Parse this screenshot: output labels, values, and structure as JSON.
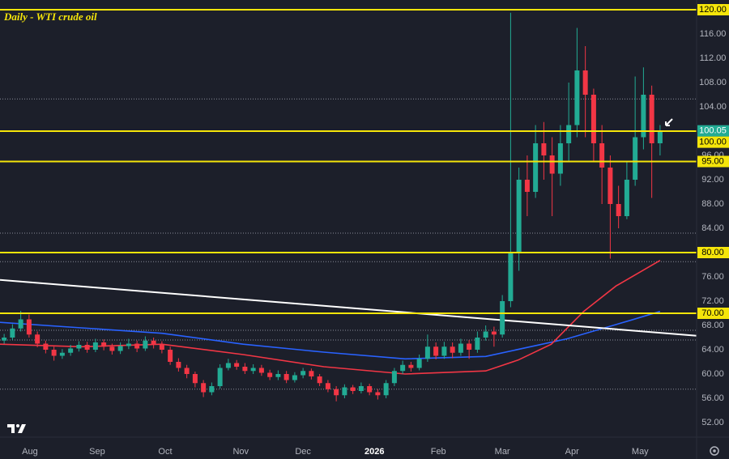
{
  "chart_data": {
    "type": "candlestick",
    "title": "Daily - WTI crude oil",
    "x": [
      0,
      1,
      2,
      3,
      4,
      5,
      6,
      7,
      8,
      9,
      10,
      11,
      12,
      13,
      14,
      15,
      16,
      17,
      18,
      19,
      20,
      21,
      22,
      23,
      24,
      25,
      26,
      27,
      28,
      29,
      30,
      31,
      32,
      33,
      34,
      35,
      36,
      37,
      38,
      39,
      40,
      41,
      42,
      43,
      44,
      45,
      46,
      47,
      48,
      49,
      50,
      51,
      52,
      53,
      54,
      55,
      56,
      57,
      58,
      59,
      60,
      61,
      62,
      63,
      64,
      65,
      66,
      67,
      68,
      69,
      70,
      71,
      72,
      73,
      74,
      75,
      76,
      77,
      78,
      79
    ],
    "open": [
      65.5,
      66.0,
      67.5,
      69.0,
      66.5,
      65.0,
      64.0,
      63.0,
      63.5,
      64.2,
      64.8,
      64.0,
      65.2,
      64.5,
      63.8,
      64.6,
      65.0,
      64.2,
      65.5,
      64.8,
      64.0,
      62.0,
      61.0,
      60.0,
      58.5,
      57.0,
      58.0,
      61.0,
      61.8,
      61.2,
      60.5,
      61.0,
      60.2,
      59.5,
      60.0,
      59.0,
      59.8,
      60.5,
      59.6,
      58.5,
      57.5,
      56.5,
      57.8,
      57.2,
      58.0,
      57.0,
      56.5,
      58.5,
      60.5,
      61.5,
      61.0,
      62.5,
      64.5,
      63.0,
      64.5,
      63.5,
      65.0,
      64.0,
      66.0,
      67.0,
      66.5,
      72.0,
      80.0,
      92.0,
      90.0,
      98.0,
      96.0,
      93.0,
      98.0,
      101.0,
      110.0,
      106.0,
      98.0,
      94.0,
      88.0,
      86.0,
      92.0,
      99.0,
      106.0,
      98.0
    ],
    "high": [
      66.6,
      68.2,
      70.4,
      69.8,
      67.0,
      65.5,
      64.5,
      64.1,
      64.8,
      65.4,
      65.3,
      65.8,
      65.7,
      65.0,
      65.2,
      65.8,
      65.5,
      66.2,
      66.0,
      65.4,
      64.5,
      62.6,
      61.5,
      60.4,
      59.0,
      58.6,
      61.6,
      62.5,
      62.3,
      61.8,
      61.6,
      61.5,
      60.7,
      60.6,
      60.5,
      60.3,
      61.0,
      60.9,
      60.0,
      59.0,
      58.0,
      58.3,
      58.2,
      58.6,
      58.4,
      57.5,
      59.0,
      61.0,
      62.2,
      62.0,
      63.2,
      66.5,
      65.2,
      65.3,
      65.2,
      65.8,
      65.6,
      67.0,
      68.0,
      67.8,
      73.0,
      119.5,
      94.0,
      96.0,
      101.0,
      101.5,
      99.0,
      101.0,
      108.0,
      117.0,
      114.0,
      107.0,
      101.0,
      96.0,
      91.0,
      95.0,
      109.0,
      110.5,
      107.5,
      101.0
    ],
    "low": [
      65.0,
      65.6,
      67.0,
      66.0,
      64.4,
      63.4,
      62.2,
      62.5,
      63.0,
      63.7,
      63.5,
      63.6,
      63.9,
      63.2,
      63.3,
      64.1,
      63.6,
      63.8,
      64.2,
      63.4,
      61.5,
      60.4,
      59.3,
      57.8,
      56.2,
      56.5,
      57.6,
      60.6,
      60.7,
      60.0,
      60.0,
      59.7,
      59.0,
      59.0,
      58.5,
      58.6,
      59.3,
      59.1,
      58.0,
      57.0,
      55.5,
      56.0,
      56.7,
      56.8,
      56.5,
      55.8,
      56.0,
      58.0,
      60.0,
      60.4,
      60.6,
      62.0,
      62.4,
      62.5,
      62.6,
      63.0,
      62.5,
      63.5,
      65.5,
      64.5,
      66.0,
      71.0,
      77.0,
      86.0,
      89.0,
      92.0,
      86.0,
      91.0,
      95.0,
      99.0,
      99.0,
      95.0,
      88.0,
      79.0,
      84.0,
      85.5,
      91.0,
      97.0,
      89.0,
      96.0
    ],
    "close": [
      66.0,
      67.5,
      69.0,
      66.5,
      65.0,
      64.0,
      63.0,
      63.5,
      64.2,
      64.8,
      64.0,
      65.2,
      64.5,
      63.8,
      64.6,
      65.0,
      64.2,
      65.5,
      64.8,
      64.0,
      62.0,
      61.0,
      60.0,
      58.5,
      57.0,
      58.0,
      61.0,
      61.8,
      61.2,
      60.5,
      61.0,
      60.2,
      59.5,
      60.0,
      59.0,
      59.8,
      60.5,
      59.6,
      58.5,
      57.5,
      56.5,
      57.8,
      57.2,
      58.0,
      57.0,
      56.5,
      58.5,
      60.5,
      61.5,
      61.0,
      62.5,
      64.5,
      63.0,
      64.5,
      63.5,
      65.0,
      64.0,
      66.0,
      67.0,
      66.5,
      72.0,
      80.0,
      92.0,
      90.0,
      98.0,
      96.0,
      93.0,
      98.0,
      101.0,
      110.0,
      106.0,
      98.0,
      94.0,
      88.0,
      86.0,
      92.0,
      99.0,
      106.0,
      98.0,
      100.05
    ],
    "up_color": "#22ab94",
    "down_color": "#f23645",
    "xlim": [
      -0.5,
      83.4
    ],
    "xticks": [
      {
        "value": 3.1,
        "label": "Aug"
      },
      {
        "value": 11.2,
        "label": "Sep"
      },
      {
        "value": 19.4,
        "label": "Oct"
      },
      {
        "value": 28.5,
        "label": "Nov"
      },
      {
        "value": 36.0,
        "label": "Dec"
      },
      {
        "value": 44.6,
        "label": "2026"
      },
      {
        "value": 52.3,
        "label": "Feb"
      },
      {
        "value": 60.0,
        "label": "Mar"
      },
      {
        "value": 68.4,
        "label": "Apr"
      },
      {
        "value": 76.6,
        "label": "May"
      }
    ],
    "ylim": [
      49.6,
      121.6
    ],
    "yticks": [
      {
        "value": 52,
        "label": "52.00"
      },
      {
        "value": 56,
        "label": "56.00"
      },
      {
        "value": 60,
        "label": "60.00"
      },
      {
        "value": 64,
        "label": "64.00"
      },
      {
        "value": 68,
        "label": "68.00"
      },
      {
        "value": 72,
        "label": "72.00"
      },
      {
        "value": 76,
        "label": "76.00"
      },
      {
        "value": 84,
        "label": "84.00"
      },
      {
        "value": 88,
        "label": "88.00"
      },
      {
        "value": 92,
        "label": "92.00"
      },
      {
        "value": 96,
        "label": "96.00"
      },
      {
        "value": 104,
        "label": "104.00"
      },
      {
        "value": 108,
        "label": "108.00"
      },
      {
        "value": 112,
        "label": "112.00"
      },
      {
        "value": 116,
        "label": "116.00"
      }
    ],
    "levels": [
      {
        "value": 120,
        "label": "120.00"
      },
      {
        "value": 100,
        "label": "100.00"
      },
      {
        "value": 95,
        "label": "95.00"
      },
      {
        "value": 80,
        "label": "80.00"
      },
      {
        "value": 70,
        "label": "70.00"
      }
    ],
    "level_color": "#f5e50a",
    "dotted_levels": [
      105.3,
      83.2,
      78.5,
      67.2,
      65.6,
      57.5
    ],
    "trendline": {
      "color": "#ffffff",
      "x": [
        -0.5,
        83.4
      ],
      "values": [
        75.5,
        66.3
      ]
    },
    "series": [
      {
        "color": "#2962ff",
        "x": [
          -0.5,
          9.3,
          19.0,
          28.8,
          38.5,
          48.3,
          58.0,
          67.8,
          75.6,
          79
        ],
        "values": [
          68.5,
          67.6,
          66.7,
          64.9,
          63.6,
          62.5,
          62.9,
          65.8,
          68.9,
          70.3
        ]
      },
      {
        "color": "#f23645",
        "x": [
          -0.5,
          9.3,
          19.0,
          28.8,
          38.5,
          48.3,
          58.0,
          61.9,
          65.9,
          69.8,
          73.7,
          79
        ],
        "values": [
          64.9,
          64.5,
          64.9,
          63.2,
          61.2,
          60.0,
          60.5,
          62.3,
          64.9,
          70.3,
          74.5,
          78.7
        ]
      }
    ],
    "last_price": {
      "value": 100.05,
      "label": "100.05",
      "color": "#22ab94"
    }
  }
}
